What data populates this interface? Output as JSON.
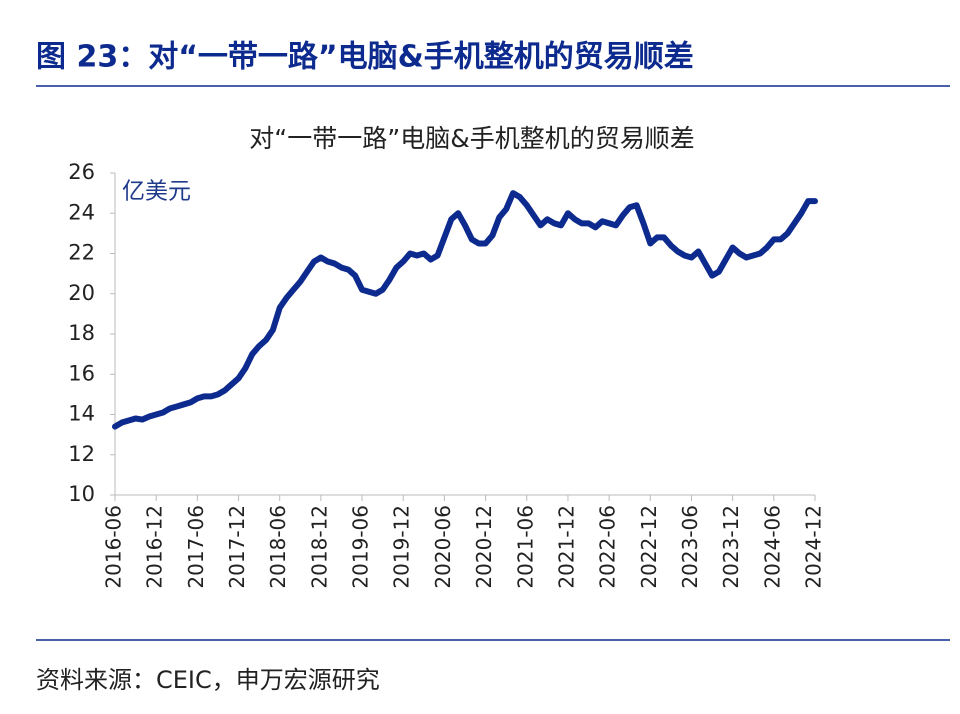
{
  "header": {
    "title": "图 23：对“一带一路”电脑&手机整机的贸易顺差"
  },
  "chart_data": {
    "type": "line",
    "title": "对“一带一路”电脑&手机整机的贸易顺差",
    "unit_label": "亿美元",
    "categories": [
      "2016-06",
      null,
      null,
      null,
      null,
      null,
      "2016-12",
      null,
      null,
      null,
      null,
      null,
      "2017-06",
      null,
      null,
      null,
      null,
      null,
      "2017-12",
      null,
      null,
      null,
      null,
      null,
      "2018-06",
      null,
      null,
      null,
      null,
      null,
      "2018-12",
      null,
      null,
      null,
      null,
      null,
      "2019-06",
      null,
      null,
      null,
      null,
      null,
      "2019-12",
      null,
      null,
      null,
      null,
      null,
      "2020-06",
      null,
      null,
      null,
      null,
      null,
      "2020-12",
      null,
      null,
      null,
      null,
      null,
      "2021-06",
      null,
      null,
      null,
      null,
      null,
      "2021-12",
      null,
      null,
      null,
      null,
      null,
      "2022-06",
      null,
      null,
      null,
      null,
      null,
      "2022-12",
      null,
      null,
      null,
      null,
      null,
      "2023-06",
      null,
      null,
      null,
      null,
      null,
      "2023-12",
      null,
      null,
      null,
      null,
      null,
      "2024-06",
      null,
      null,
      null,
      null,
      null,
      "2024-12"
    ],
    "series": [
      {
        "color": "#0d2b8e",
        "values": [
          13.4,
          13.6,
          13.7,
          13.8,
          13.75,
          13.9,
          14.0,
          14.1,
          14.3,
          14.4,
          14.5,
          14.6,
          14.8,
          14.9,
          14.9,
          15.0,
          15.2,
          15.5,
          15.8,
          16.3,
          17.0,
          17.4,
          17.7,
          18.2,
          19.3,
          19.8,
          20.2,
          20.6,
          21.1,
          21.6,
          21.8,
          21.6,
          21.5,
          21.3,
          21.2,
          20.9,
          20.2,
          20.1,
          20.0,
          20.2,
          20.7,
          21.3,
          21.6,
          22.0,
          21.9,
          22.0,
          21.7,
          21.9,
          22.8,
          23.7,
          24.0,
          23.4,
          22.7,
          22.5,
          22.5,
          22.9,
          23.8,
          24.2,
          25.0,
          24.8,
          24.4,
          23.9,
          23.4,
          23.7,
          23.5,
          23.4,
          24.0,
          23.7,
          23.5,
          23.5,
          23.3,
          23.6,
          23.5,
          23.4,
          23.9,
          24.3,
          24.4,
          23.5,
          22.5,
          22.8,
          22.8,
          22.4,
          22.1,
          21.9,
          21.8,
          22.1,
          21.5,
          20.9,
          21.1,
          21.7,
          22.3,
          22.0,
          21.8,
          21.9,
          22.0,
          22.3,
          22.7,
          22.7,
          23.0,
          23.5,
          24.0,
          24.6,
          24.6
        ]
      }
    ],
    "ylim": [
      10,
      26
    ],
    "yticks": [
      10,
      12,
      14,
      16,
      18,
      20,
      22,
      24,
      26
    ]
  },
  "footer": {
    "source": "资料来源：CEIC，申万宏源研究"
  }
}
